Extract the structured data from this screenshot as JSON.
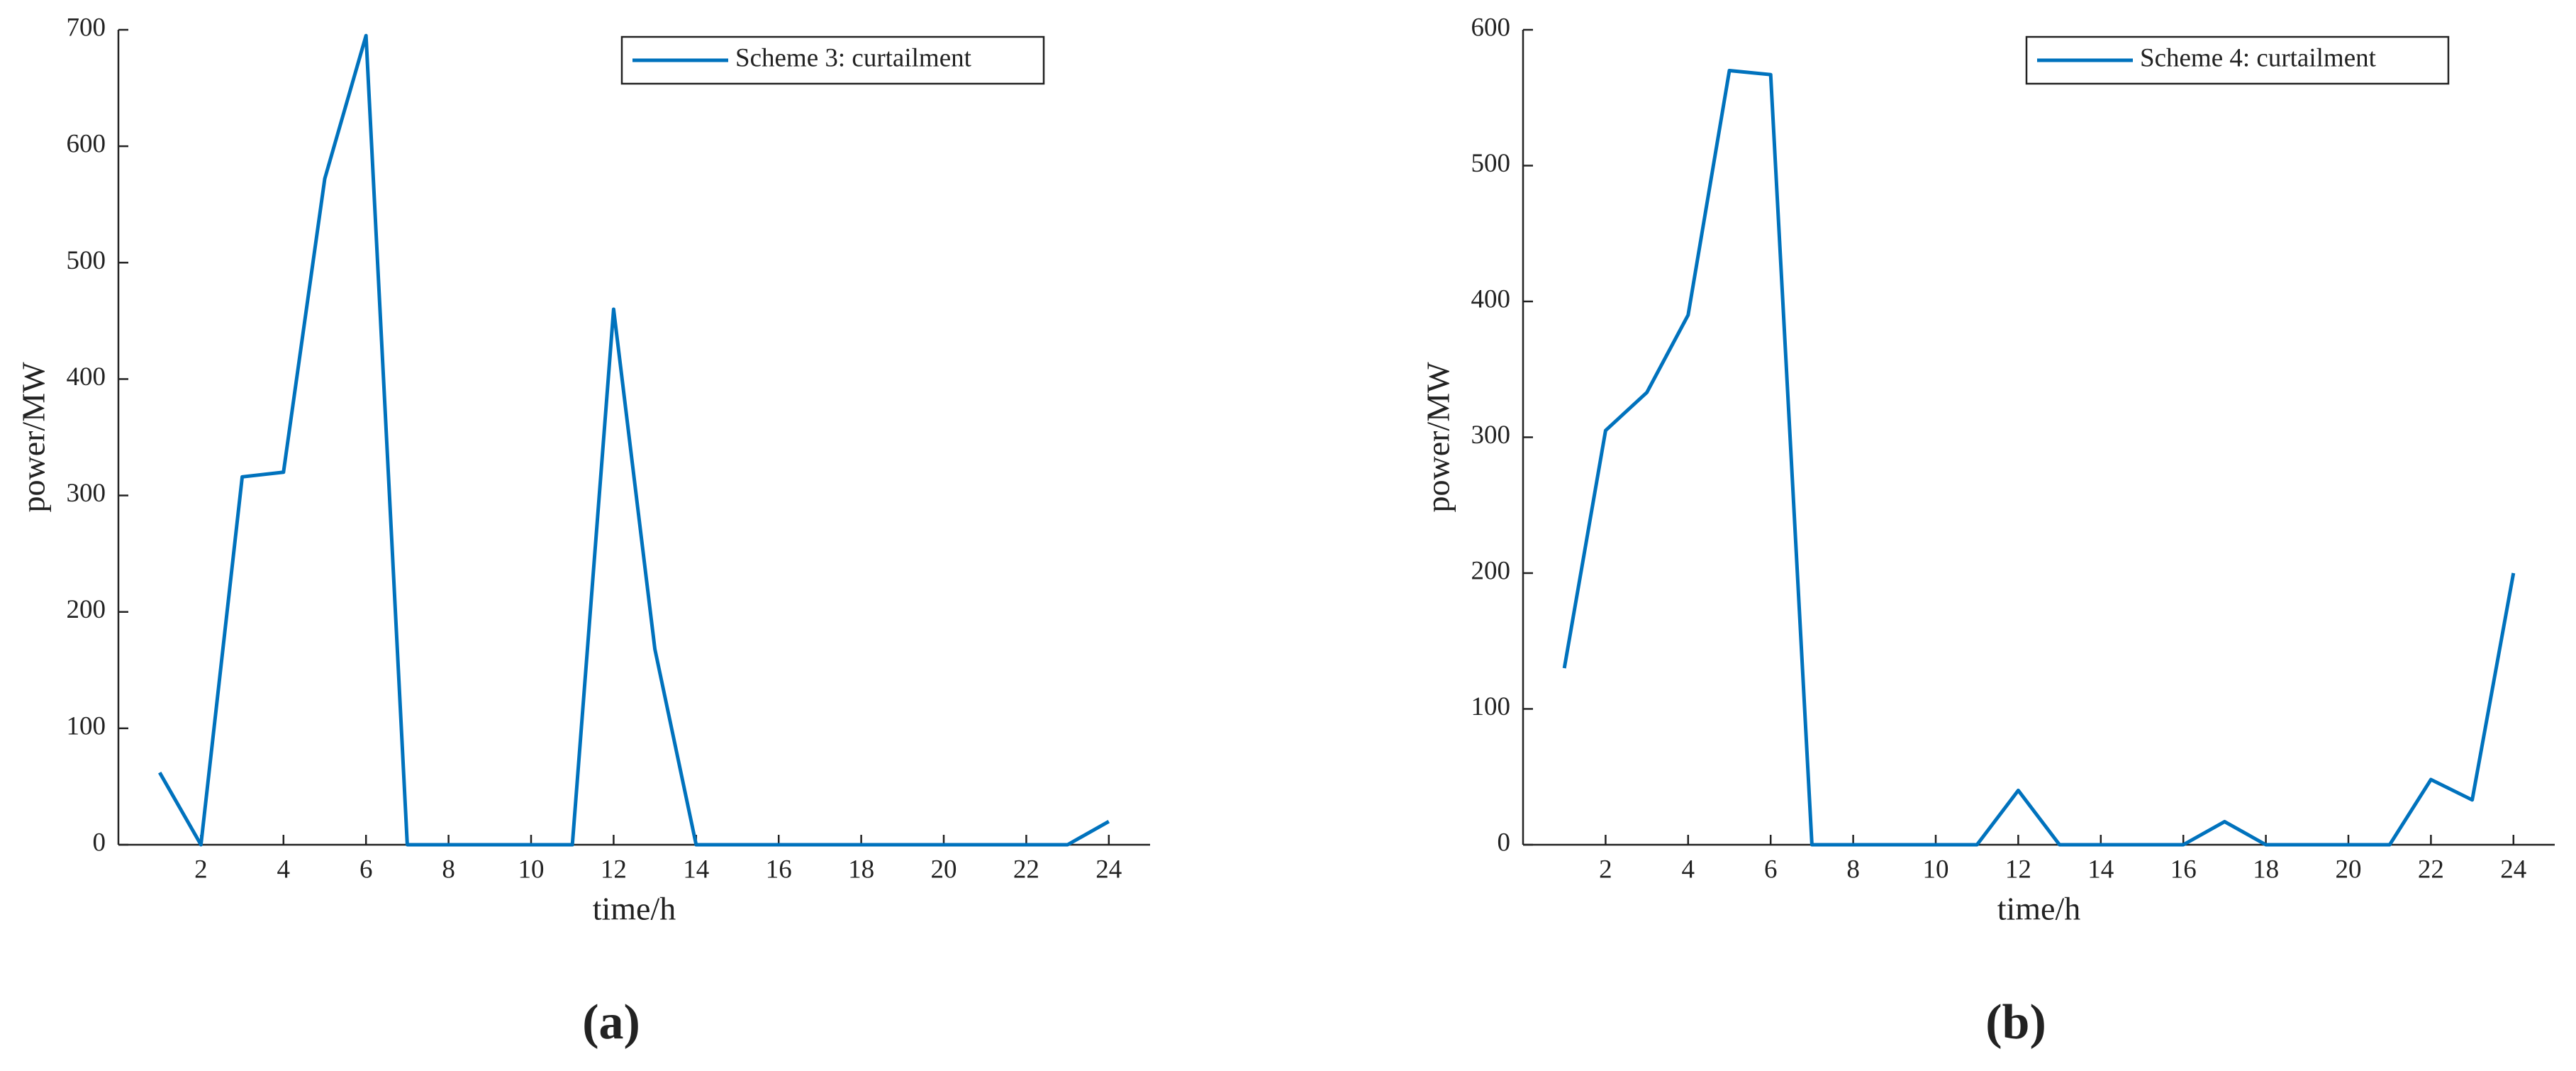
{
  "chart_data": [
    {
      "type": "line",
      "caption": "(a)",
      "xlabel": "time/h",
      "ylabel": "power/MW",
      "x": [
        1,
        2,
        3,
        4,
        5,
        6,
        7,
        8,
        9,
        10,
        11,
        12,
        13,
        14,
        15,
        16,
        17,
        18,
        19,
        20,
        21,
        22,
        23,
        24
      ],
      "series": [
        {
          "name": "Scheme 3: curtailment",
          "color": "#0072bd",
          "values": [
            62,
            0,
            316,
            320,
            572,
            695,
            0,
            0,
            0,
            0,
            0,
            460,
            168,
            0,
            0,
            0,
            0,
            0,
            0,
            0,
            0,
            0,
            0,
            20
          ]
        }
      ],
      "xlim": [
        0,
        25
      ],
      "xticks": [
        2,
        4,
        6,
        8,
        10,
        12,
        14,
        16,
        18,
        20,
        22,
        24
      ],
      "ylim": [
        0,
        700
      ],
      "yticks": [
        0,
        100,
        200,
        300,
        400,
        500,
        600,
        700
      ],
      "grid": false,
      "legend": "upper right"
    },
    {
      "type": "line",
      "caption": "(b)",
      "xlabel": "time/h",
      "ylabel": "power/MW",
      "x": [
        1,
        2,
        3,
        4,
        5,
        6,
        7,
        8,
        9,
        10,
        11,
        12,
        13,
        14,
        15,
        16,
        17,
        18,
        19,
        20,
        21,
        22,
        23,
        24
      ],
      "series": [
        {
          "name": "Scheme 4: curtailment",
          "color": "#0072bd",
          "values": [
            130,
            305,
            333,
            390,
            570,
            567,
            0,
            0,
            0,
            0,
            0,
            40,
            0,
            0,
            0,
            0,
            17,
            0,
            0,
            0,
            0,
            48,
            33,
            200
          ]
        }
      ],
      "xlim": [
        0,
        25
      ],
      "xticks": [
        2,
        4,
        6,
        8,
        10,
        12,
        14,
        16,
        18,
        20,
        22,
        24
      ],
      "ylim": [
        0,
        600
      ],
      "yticks": [
        0,
        100,
        200,
        300,
        400,
        500,
        600
      ],
      "grid": false,
      "legend": "upper right"
    }
  ]
}
